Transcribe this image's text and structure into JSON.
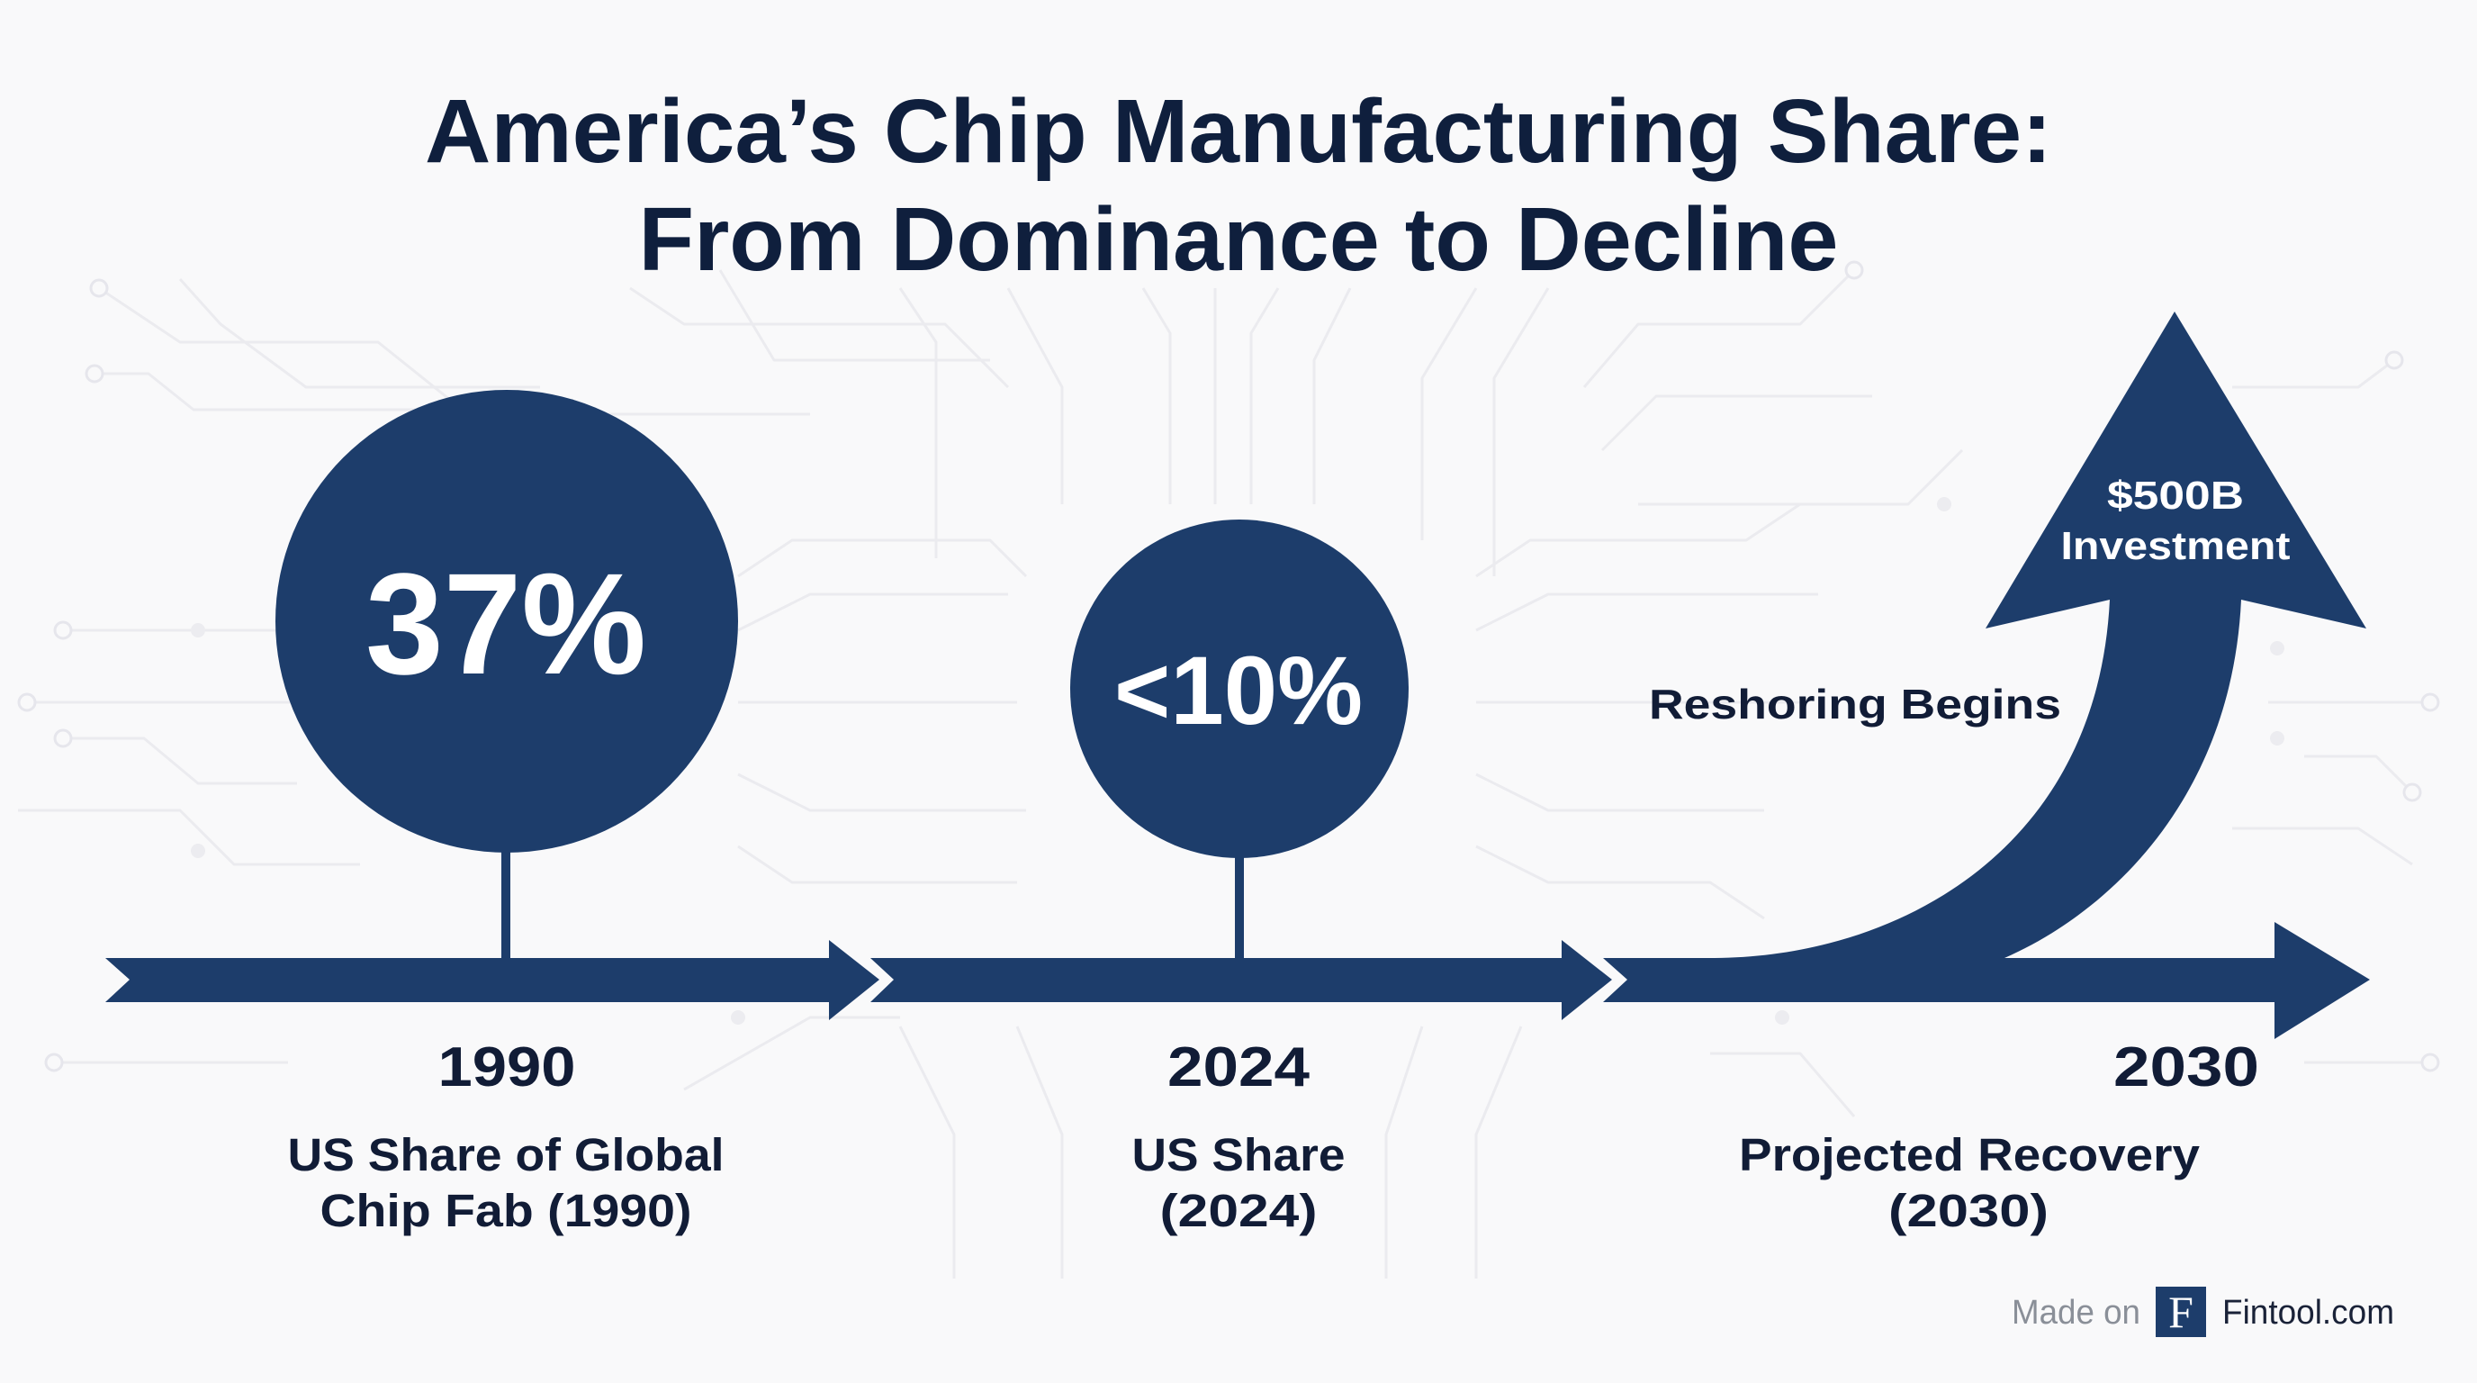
{
  "title": {
    "line1": "America’s Chip Manufacturing Share:",
    "line2": "From Dominance to Decline"
  },
  "colors": {
    "navy": "#1d3d6b",
    "title_text": "#0f1f3d",
    "label_text": "#111c36",
    "background": "#f9f9fa",
    "footer_gray": "#8a8f98"
  },
  "milestones": [
    {
      "year": "1990",
      "value_label": "37%",
      "value_percent": 37,
      "description_line1": "US Share of Global",
      "description_line2": "Chip Fab (1990)"
    },
    {
      "year": "2024",
      "value_label": "<10%",
      "value_percent": 10,
      "description_line1": "US Share",
      "description_line2": "(2024)"
    },
    {
      "year": "2030",
      "description_line1": "Projected Recovery",
      "description_line2": "(2030)",
      "arrow_label_line1": "$500B",
      "arrow_label_line2": "Investment",
      "annotation": "Reshoring Begins"
    }
  ],
  "footer": {
    "made_on": "Made on",
    "logo_letter": "F",
    "brand": "Fintool.com"
  },
  "icons": {
    "logo": "fintool-logo-icon",
    "timeline": "timeline-arrow-icon",
    "growth_arrow": "growth-arrow-icon"
  }
}
